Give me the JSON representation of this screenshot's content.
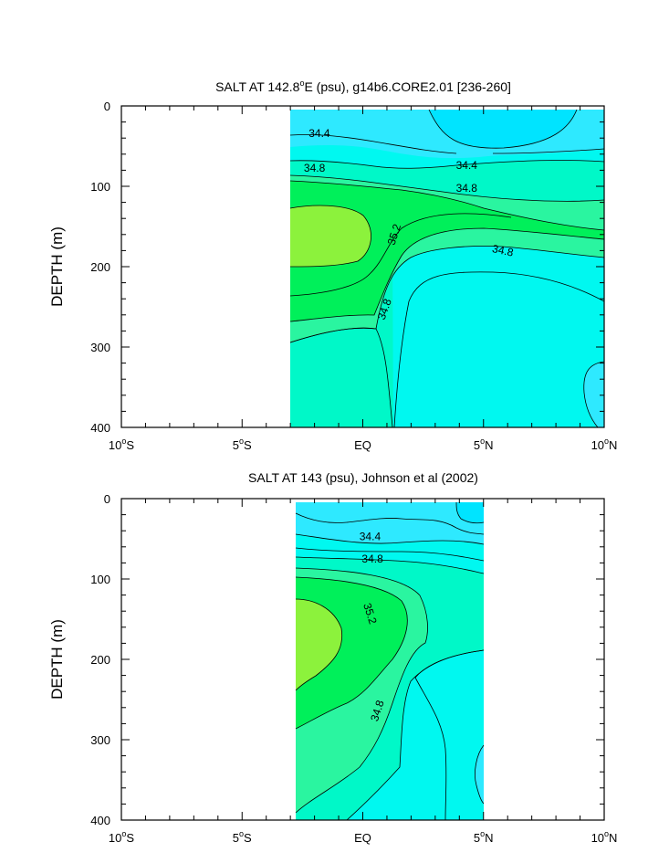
{
  "colors": {
    "level_34_2": "#00e4ff",
    "level_34_4": "#2ee9ff",
    "level_34_6": "#00f8f0",
    "level_34_8": "#00f8c8",
    "level_35_0": "#2af5a0",
    "level_35_2": "#00f05a",
    "level_35_4": "#8cf23c"
  },
  "chart_data": [
    {
      "type": "contour",
      "title": "SALT AT 142.8°E (psu), g14b6.CORE2.01 [236-260]",
      "title_parts": {
        "before": "SALT AT 142.8",
        "sup": "o",
        "after": "E (psu), g14b6.CORE2.01 [236-260]"
      },
      "xlabel": "",
      "ylabel": "DEPTH (m)",
      "xlim": [
        -10,
        10
      ],
      "ylim": [
        400,
        0
      ],
      "data_xrange": [
        -3,
        10
      ],
      "x_ticks": [
        {
          "value": -10,
          "num": "10",
          "deg": "o",
          "suffix": "S"
        },
        {
          "value": -5,
          "num": "5",
          "deg": "o",
          "suffix": "S"
        },
        {
          "value": 0,
          "num": "EQ",
          "deg": "",
          "suffix": ""
        },
        {
          "value": 5,
          "num": "5",
          "deg": "o",
          "suffix": "N"
        },
        {
          "value": 10,
          "num": "10",
          "deg": "o",
          "suffix": "N"
        }
      ],
      "y_ticks": [
        0,
        100,
        200,
        300,
        400
      ],
      "contour_levels": [
        34.2,
        34.4,
        34.6,
        34.8,
        35.0,
        35.2
      ],
      "contour_labels": [
        {
          "text": "34.4",
          "x": -1.8,
          "y": 34,
          "rotate": 0
        },
        {
          "text": "34.8",
          "x": -2.0,
          "y": 77,
          "rotate": 0
        },
        {
          "text": "34.4",
          "x": 4.3,
          "y": 74,
          "rotate": 0
        },
        {
          "text": "34.8",
          "x": 4.3,
          "y": 102,
          "rotate": 0
        },
        {
          "text": "35.2",
          "x": 1.3,
          "y": 160,
          "rotate": -72
        },
        {
          "text": "34.8",
          "x": 5.8,
          "y": 180,
          "rotate": 12
        },
        {
          "text": "34.8",
          "x": 0.9,
          "y": 253,
          "rotate": -70
        }
      ]
    },
    {
      "type": "contour",
      "title": "SALT AT 143 (psu), Johnson et al (2002)",
      "xlabel": "",
      "ylabel": "DEPTH (m)",
      "xlim": [
        -10,
        10
      ],
      "ylim": [
        400,
        0
      ],
      "data_xrange": [
        -2.7,
        5
      ],
      "x_ticks": [
        {
          "value": -10,
          "num": "10",
          "deg": "o",
          "suffix": "S"
        },
        {
          "value": -5,
          "num": "5",
          "deg": "o",
          "suffix": "S"
        },
        {
          "value": 0,
          "num": "EQ",
          "deg": "",
          "suffix": ""
        },
        {
          "value": 5,
          "num": "5",
          "deg": "o",
          "suffix": "N"
        },
        {
          "value": 10,
          "num": "10",
          "deg": "o",
          "suffix": "N"
        }
      ],
      "y_ticks": [
        0,
        100,
        200,
        300,
        400
      ],
      "contour_levels": [
        34.2,
        34.4,
        34.6,
        34.8,
        35.0,
        35.2
      ],
      "contour_labels": [
        {
          "text": "34.4",
          "x": 0.3,
          "y": 47,
          "rotate": 0
        },
        {
          "text": "34.8",
          "x": 0.4,
          "y": 75,
          "rotate": 0
        },
        {
          "text": "35.2",
          "x": 0.3,
          "y": 143,
          "rotate": 72
        },
        {
          "text": "34.8",
          "x": 0.6,
          "y": 264,
          "rotate": -72
        }
      ]
    }
  ]
}
